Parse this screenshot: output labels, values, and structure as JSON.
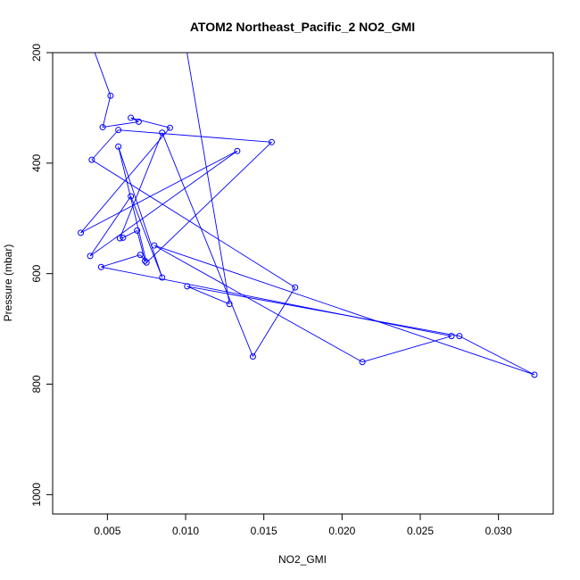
{
  "chart_data": {
    "type": "line",
    "title": "ATOM2 Northeast_Pacific_2 NO2_GMI",
    "xlabel": "NO2_GMI",
    "ylabel": "Pressure (mbar)",
    "xlim": [
      0.0015,
      0.0335
    ],
    "ylim": [
      1035,
      200
    ],
    "y_reversed": true,
    "x_ticks": [
      0.005,
      0.01,
      0.015,
      0.02,
      0.025,
      0.03
    ],
    "x_tick_labels": [
      "0.005",
      "0.010",
      "0.015",
      "0.020",
      "0.025",
      "0.030"
    ],
    "y_ticks": [
      200,
      400,
      600,
      800,
      1000
    ],
    "y_tick_labels": [
      "200",
      "400",
      "600",
      "800",
      "1000"
    ],
    "grid": false,
    "series": [
      {
        "color": "#0000ff",
        "marker": "open-circle",
        "points": [
          {
            "x": 0.004,
            "y": 185
          },
          {
            "x": 0.0052,
            "y": 278
          },
          {
            "x": 0.0047,
            "y": 335
          },
          {
            "x": 0.007,
            "y": 325
          },
          {
            "x": 0.0065,
            "y": 318
          },
          {
            "x": 0.009,
            "y": 336
          },
          {
            "x": 0.0033,
            "y": 526
          },
          {
            "x": 0.0133,
            "y": 378
          },
          {
            "x": 0.0039,
            "y": 568
          },
          {
            "x": 0.0065,
            "y": 460
          },
          {
            "x": 0.0085,
            "y": 607
          },
          {
            "x": 0.0057,
            "y": 370
          },
          {
            "x": 0.0075,
            "y": 580
          },
          {
            "x": 0.0155,
            "y": 362
          },
          {
            "x": 0.0057,
            "y": 340
          },
          {
            "x": 0.004,
            "y": 394
          },
          {
            "x": 0.017,
            "y": 625
          },
          {
            "x": 0.0143,
            "y": 750
          },
          {
            "x": 0.0085,
            "y": 345
          },
          {
            "x": 0.0058,
            "y": 536
          },
          {
            "x": 0.006,
            "y": 535
          },
          {
            "x": 0.0069,
            "y": 522
          },
          {
            "x": 0.0074,
            "y": 577
          },
          {
            "x": 0.0071,
            "y": 566
          },
          {
            "x": 0.0046,
            "y": 588
          },
          {
            "x": 0.027,
            "y": 713
          },
          {
            "x": 0.0213,
            "y": 760
          },
          {
            "x": 0.008,
            "y": 549
          },
          {
            "x": 0.0323,
            "y": 783
          },
          {
            "x": 0.0275,
            "y": 713
          },
          {
            "x": 0.0101,
            "y": 623
          },
          {
            "x": 0.0128,
            "y": 655
          },
          {
            "x": 0.01,
            "y": 185
          }
        ]
      }
    ]
  }
}
